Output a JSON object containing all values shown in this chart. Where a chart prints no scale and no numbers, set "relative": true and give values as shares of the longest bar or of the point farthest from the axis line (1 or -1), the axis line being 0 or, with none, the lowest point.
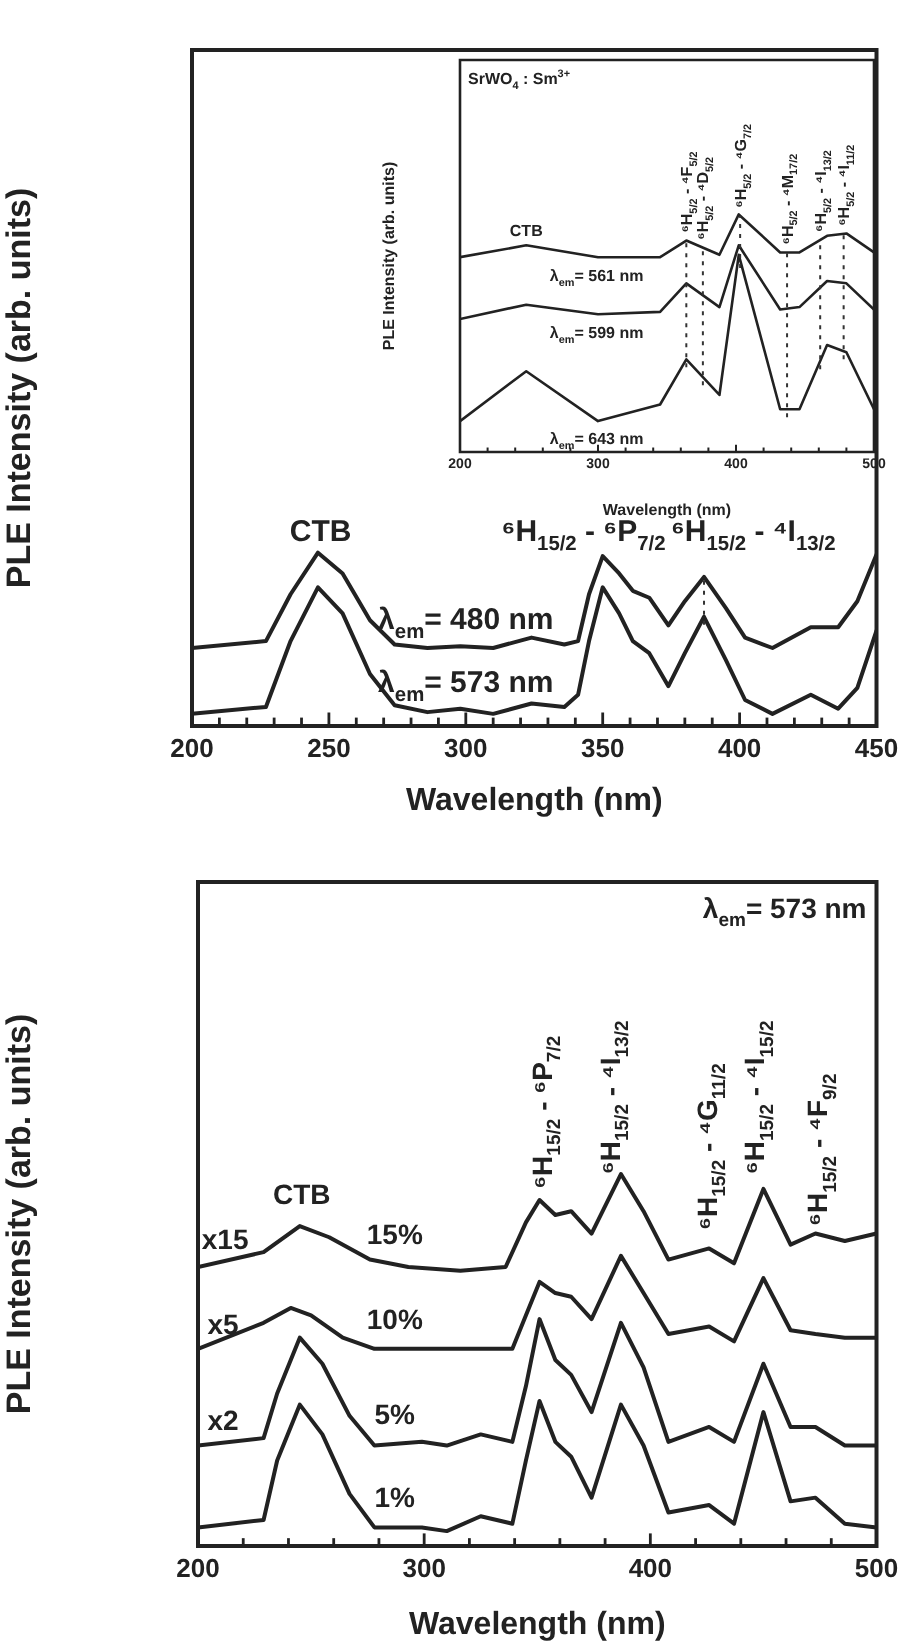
{
  "chart_data": [
    {
      "type": "line",
      "relative": true,
      "xlabel": "Wavelength (nm)",
      "ylabel": "PLE Intensity (arb. units)",
      "xlim": [
        200,
        450
      ],
      "xticks": [
        200,
        {
          "value": 210,
          "label": null
        },
        {
          "value": 220,
          "label": null
        },
        {
          "value": 230,
          "label": null
        },
        {
          "value": 240,
          "label": null
        },
        250,
        {
          "value": 260,
          "label": null
        },
        {
          "value": 270,
          "label": null
        },
        {
          "value": 280,
          "label": null
        },
        {
          "value": 290,
          "label": null
        },
        300,
        {
          "value": 310,
          "label": null
        },
        {
          "value": 320,
          "label": null
        },
        {
          "value": 330,
          "label": null
        },
        {
          "value": 340,
          "label": null
        },
        350,
        {
          "value": 360,
          "label": null
        },
        {
          "value": 370,
          "label": null
        },
        {
          "value": 380,
          "label": null
        },
        {
          "value": 390,
          "label": null
        },
        400,
        {
          "value": 410,
          "label": null
        },
        {
          "value": 420,
          "label": null
        },
        {
          "value": 430,
          "label": null
        },
        {
          "value": 440,
          "label": null
        },
        450
      ],
      "x": [
        200,
        227,
        236,
        246,
        255,
        265,
        274,
        286,
        298,
        310,
        324,
        336,
        341,
        345,
        350,
        356,
        361,
        367,
        374,
        380,
        387,
        395,
        402,
        412,
        426,
        436,
        443,
        450
      ],
      "series": [
        {
          "name": "λ$_{em}$= 480 nm",
          "color": "#222222",
          "values": [
            0.45,
            0.49,
            0.76,
            1,
            0.88,
            0.61,
            0.47,
            0.45,
            0.46,
            0.45,
            0.51,
            0.47,
            0.49,
            0.76,
            0.98,
            0.88,
            0.78,
            0.74,
            0.58,
            0.72,
            0.86,
            0.68,
            0.51,
            0.45,
            0.57,
            0.57,
            0.72,
            0.99
          ]
        },
        {
          "name": "λ$_{em}$= 573 nm",
          "color": "#222222",
          "values": [
            0.07,
            0.11,
            0.49,
            0.8,
            0.65,
            0.3,
            0.12,
            0.08,
            0.1,
            0.07,
            0.13,
            0.11,
            0.18,
            0.49,
            0.8,
            0.65,
            0.49,
            0.42,
            0.23,
            0.42,
            0.63,
            0.38,
            0.15,
            0.07,
            0.18,
            0.1,
            0.22,
            0.55
          ]
        }
      ],
      "ref_lines": [
        {
          "axis": "x",
          "value": 387,
          "line_style": "dotted"
        }
      ],
      "annotations": [
        "CTB",
        "⁶H$_{15/2}$ - ⁶P$_{7/2}$",
        "⁶H$_{15/2}$ - ⁴I$_{13/2}$"
      ],
      "grid": false,
      "legend": false,
      "marker": "none",
      "line_style": "solid"
    },
    {
      "type": "line",
      "relative": true,
      "xlabel": "Wavelength (nm)",
      "ylabel": "PLE Intensity (arb. units)",
      "xlim": [
        200,
        500
      ],
      "xticks": [
        200,
        {
          "value": 220,
          "label": null
        },
        {
          "value": 240,
          "label": null
        },
        {
          "value": 260,
          "label": null
        },
        {
          "value": 280,
          "label": null
        },
        300,
        {
          "value": 320,
          "label": null
        },
        {
          "value": 340,
          "label": null
        },
        {
          "value": 360,
          "label": null
        },
        {
          "value": 380,
          "label": null
        },
        400,
        {
          "value": 420,
          "label": null
        },
        {
          "value": 440,
          "label": null
        },
        {
          "value": 460,
          "label": null
        },
        {
          "value": 480,
          "label": null
        },
        500
      ],
      "x": [
        200,
        248,
        300,
        345,
        364,
        388,
        402,
        432,
        446,
        466,
        480,
        500
      ],
      "series": [
        {
          "name": "λ$_{em}$= 561 nm",
          "color": "#222222",
          "values": [
            0.82,
            0.87,
            0.82,
            0.82,
            0.89,
            0.83,
            1,
            0.84,
            0.84,
            0.91,
            0.92,
            0.84
          ]
        },
        {
          "name": "λ$_{em}$= 599 nm",
          "color": "#222222",
          "values": [
            0.56,
            0.62,
            0.58,
            0.59,
            0.71,
            0.61,
            0.87,
            0.6,
            0.61,
            0.72,
            0.71,
            0.6
          ]
        },
        {
          "name": "λ$_{em}$= 643 nm",
          "color": "#222222",
          "values": [
            0.13,
            0.34,
            0.13,
            0.2,
            0.39,
            0.24,
            0.83,
            0.18,
            0.18,
            0.45,
            0.42,
            0.18
          ]
        }
      ],
      "ref_lines": [
        {
          "axis": "x",
          "value": 364,
          "label": "⁶H$_{5/2}$ - ⁴F$_{5/2}$",
          "line_style": "dotted"
        },
        {
          "axis": "x",
          "value": 376,
          "label": "⁶H$_{5/2}$ - ⁴D$_{5/2}$",
          "line_style": "dotted"
        },
        {
          "axis": "x",
          "value": 403,
          "label": "⁶H$_{5/2}$ - ⁴G$_{7/2}$",
          "line_style": "dotted"
        },
        {
          "axis": "x",
          "value": 437,
          "label": "⁶H$_{5/2}$ - ⁴M$_{17/2}$",
          "line_style": "dotted"
        },
        {
          "axis": "x",
          "value": 461,
          "label": "⁶H$_{5/2}$ - ⁴I$_{13/2}$",
          "line_style": "dotted"
        },
        {
          "axis": "x",
          "value": 478,
          "label": "⁶H$_{5/2}$ - ⁴I$_{11/2}$",
          "line_style": "dotted"
        }
      ],
      "annotations": [
        "SrWO$_{4}$ : Sm$^{3+}$",
        "CTB"
      ],
      "grid": false,
      "legend": false,
      "marker": "none",
      "line_style": "solid"
    },
    {
      "type": "line",
      "relative": true,
      "xlabel": "Wavelength (nm)",
      "ylabel": "PLE Intensity (arb. units)",
      "xlim": [
        200,
        500
      ],
      "xticks": [
        200,
        {
          "value": 220,
          "label": null
        },
        {
          "value": 240,
          "label": null
        },
        {
          "value": 260,
          "label": null
        },
        {
          "value": 280,
          "label": null
        },
        300,
        {
          "value": 320,
          "label": null
        },
        {
          "value": 340,
          "label": null
        },
        {
          "value": 360,
          "label": null
        },
        {
          "value": 380,
          "label": null
        },
        400,
        {
          "value": 420,
          "label": null
        },
        {
          "value": 440,
          "label": null
        },
        {
          "value": 460,
          "label": null
        },
        {
          "value": 480,
          "label": null
        },
        500
      ],
      "series": [
        {
          "name": "1%",
          "color": "#222222",
          "x": [
            200,
            229,
            235,
            245,
            255,
            267,
            278,
            299,
            310,
            325,
            339,
            345,
            351,
            358,
            365,
            374,
            387,
            397,
            408,
            426,
            437,
            450,
            462,
            473,
            486,
            500
          ],
          "values": [
            0.05,
            0.07,
            0.23,
            0.38,
            0.3,
            0.14,
            0.05,
            0.05,
            0.04,
            0.08,
            0.06,
            0.23,
            0.39,
            0.28,
            0.24,
            0.13,
            0.38,
            0.27,
            0.09,
            0.11,
            0.06,
            0.36,
            0.12,
            0.13,
            0.06,
            0.05
          ]
        },
        {
          "name": "5%",
          "color": "#222222",
          "x": [
            200,
            229,
            235,
            245,
            255,
            267,
            278,
            299,
            310,
            325,
            339,
            345,
            351,
            358,
            365,
            374,
            387,
            397,
            408,
            426,
            437,
            450,
            462,
            473,
            486,
            500
          ],
          "values": [
            0.27,
            0.29,
            0.41,
            0.56,
            0.49,
            0.35,
            0.27,
            0.28,
            0.27,
            0.3,
            0.28,
            0.43,
            0.61,
            0.5,
            0.46,
            0.36,
            0.6,
            0.48,
            0.28,
            0.32,
            0.28,
            0.49,
            0.32,
            0.32,
            0.27,
            0.27
          ]
        },
        {
          "name": "10%",
          "color": "#222222",
          "x": [
            200,
            229,
            241,
            250,
            264,
            278,
            310,
            339,
            345,
            351,
            358,
            365,
            374,
            387,
            397,
            408,
            426,
            437,
            450,
            462,
            473,
            486,
            500
          ],
          "values": [
            0.53,
            0.6,
            0.64,
            0.62,
            0.56,
            0.53,
            0.53,
            0.53,
            0.62,
            0.71,
            0.68,
            0.67,
            0.61,
            0.78,
            0.68,
            0.57,
            0.59,
            0.55,
            0.72,
            0.58,
            0.57,
            0.56,
            0.56
          ]
        },
        {
          "name": "15%",
          "color": "#222222",
          "x": [
            200,
            229,
            245,
            258,
            276,
            293,
            316,
            336,
            345,
            351,
            358,
            365,
            374,
            387,
            397,
            408,
            426,
            437,
            450,
            462,
            473,
            486,
            500
          ],
          "values": [
            0.75,
            0.79,
            0.86,
            0.83,
            0.77,
            0.75,
            0.74,
            0.75,
            0.87,
            0.93,
            0.89,
            0.9,
            0.84,
            1,
            0.9,
            0.77,
            0.8,
            0.76,
            0.96,
            0.81,
            0.84,
            0.82,
            0.84
          ]
        }
      ],
      "annotations": [
        "λ$_{em}$= 573 nm",
        "CTB",
        "x15",
        "x5",
        "x2",
        "⁶H$_{15/2}$ - ⁶P$_{7/2}$",
        "⁶H$_{15/2}$ - ⁴I$_{13/2}$",
        "⁶H$_{15/2}$ - ⁴G$_{11/2}$",
        "⁶H$_{15/2}$ - ⁴I$_{15/2}$",
        "⁶H$_{15/2}$ - ⁴F$_{9/2}$"
      ],
      "grid": false,
      "legend": false,
      "marker": "none",
      "line_style": "solid"
    }
  ]
}
